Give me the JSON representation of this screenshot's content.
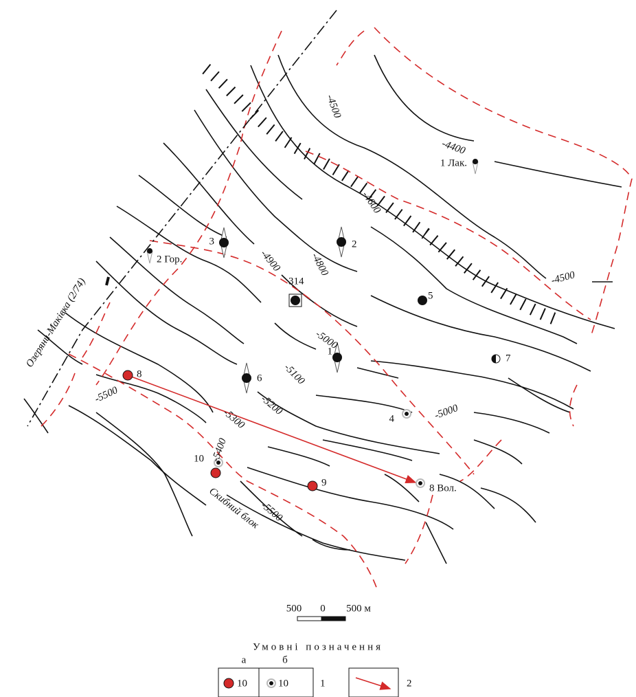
{
  "contour_labels": [
    "-4500",
    "-4400",
    "-4600",
    "-4900",
    "-4800",
    "-4500",
    "-5000",
    "-5100",
    "-5000",
    "-5200",
    "-5500",
    "-5300",
    "-5400",
    "-5500"
  ],
  "wells": [
    "1 Лак.",
    "2 Гор.",
    "3",
    "2",
    "314",
    "5",
    "1",
    "7",
    "8",
    "6",
    "4",
    "10",
    "9",
    "8 Вол."
  ],
  "fault_label": "Озеряни-Маківка (2/74)",
  "block_label": "Скибний блок",
  "scale": {
    "labels": [
      "500",
      "0",
      "500 м"
    ]
  },
  "legend": {
    "title": "Умовні позначення",
    "column_a": "а",
    "column_b": "б",
    "sample_a": "10",
    "sample_b": "10",
    "item_1": "1",
    "item_2": "2"
  }
}
